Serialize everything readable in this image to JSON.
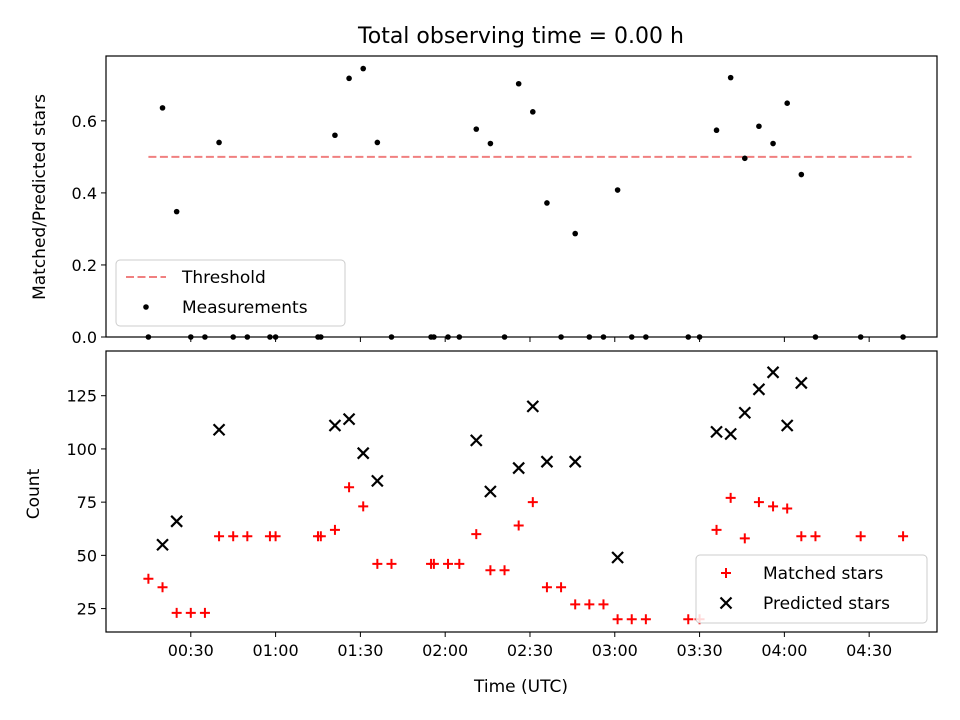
{
  "colors": {
    "threshold": "#f08080",
    "measurements": "#000000",
    "matched": "#ff0000",
    "predicted": "#000000"
  },
  "chart_data": [
    {
      "type": "scatter",
      "title": "Total observing time = 0.00 h",
      "xlabel": "",
      "ylabel": "Matched/Predicted stars",
      "xlim": [
        "00:00",
        "04:54"
      ],
      "ylim": [
        0,
        0.78
      ],
      "yticks": [
        0.0,
        0.2,
        0.4,
        0.6
      ],
      "yticklabels": [
        "0.0",
        "0.2",
        "0.4",
        "0.6"
      ],
      "grid": false,
      "legend": "lower-left",
      "threshold": {
        "name": "Threshold",
        "style": "dashed",
        "y": 0.5,
        "x": [
          "00:15",
          "04:45"
        ]
      },
      "series": [
        {
          "name": "Measurements",
          "marker": "dot",
          "points": [
            [
              "00:15",
              0.0
            ],
            [
              "00:20",
              0.636
            ],
            [
              "00:25",
              0.348
            ],
            [
              "00:30",
              0.0
            ],
            [
              "00:35",
              0.0
            ],
            [
              "00:40",
              0.54
            ],
            [
              "00:45",
              0.0
            ],
            [
              "00:50",
              0.0
            ],
            [
              "00:58",
              0.0
            ],
            [
              "01:00",
              0.0
            ],
            [
              "01:15",
              0.0
            ],
            [
              "01:16",
              0.0
            ],
            [
              "01:21",
              0.56
            ],
            [
              "01:26",
              0.718
            ],
            [
              "01:31",
              0.745
            ],
            [
              "01:36",
              0.54
            ],
            [
              "01:41",
              0.0
            ],
            [
              "01:55",
              0.0
            ],
            [
              "01:56",
              0.0
            ],
            [
              "02:01",
              0.0
            ],
            [
              "02:05",
              0.0
            ],
            [
              "02:11",
              0.577
            ],
            [
              "02:16",
              0.537
            ],
            [
              "02:21",
              0.0
            ],
            [
              "02:26",
              0.703
            ],
            [
              "02:31",
              0.625
            ],
            [
              "02:36",
              0.372
            ],
            [
              "02:41",
              0.0
            ],
            [
              "02:46",
              0.287
            ],
            [
              "02:51",
              0.0
            ],
            [
              "02:56",
              0.0
            ],
            [
              "03:01",
              0.408
            ],
            [
              "03:06",
              0.0
            ],
            [
              "03:11",
              0.0
            ],
            [
              "03:26",
              0.0
            ],
            [
              "03:30",
              0.0
            ],
            [
              "03:36",
              0.574
            ],
            [
              "03:41",
              0.72
            ],
            [
              "03:46",
              0.496
            ],
            [
              "03:51",
              0.585
            ],
            [
              "03:56",
              0.537
            ],
            [
              "04:01",
              0.649
            ],
            [
              "04:06",
              0.451
            ],
            [
              "04:11",
              0.0
            ],
            [
              "04:27",
              0.0
            ],
            [
              "04:42",
              0.0
            ]
          ]
        }
      ]
    },
    {
      "type": "scatter",
      "title": "",
      "xlabel": "Time (UTC)",
      "ylabel": "Count",
      "xlim": [
        "00:00",
        "04:54"
      ],
      "ylim": [
        14,
        146
      ],
      "yticks": [
        25,
        50,
        75,
        100,
        125
      ],
      "yticklabels": [
        "25",
        "50",
        "75",
        "100",
        "125"
      ],
      "xticks": [
        "00:30",
        "01:00",
        "01:30",
        "02:00",
        "02:30",
        "03:00",
        "03:30",
        "04:00",
        "04:30"
      ],
      "grid": false,
      "legend": "lower-right",
      "series": [
        {
          "name": "Matched stars",
          "marker": "plus",
          "points": [
            [
              "00:15",
              39
            ],
            [
              "00:20",
              35
            ],
            [
              "00:25",
              23
            ],
            [
              "00:30",
              23
            ],
            [
              "00:35",
              23
            ],
            [
              "00:40",
              59
            ],
            [
              "00:45",
              59
            ],
            [
              "00:50",
              59
            ],
            [
              "00:58",
              59
            ],
            [
              "01:00",
              59
            ],
            [
              "01:15",
              59
            ],
            [
              "01:16",
              59
            ],
            [
              "01:21",
              62
            ],
            [
              "01:26",
              82
            ],
            [
              "01:31",
              73
            ],
            [
              "01:36",
              46
            ],
            [
              "01:41",
              46
            ],
            [
              "01:55",
              46
            ],
            [
              "01:56",
              46
            ],
            [
              "02:01",
              46
            ],
            [
              "02:05",
              46
            ],
            [
              "02:11",
              60
            ],
            [
              "02:16",
              43
            ],
            [
              "02:21",
              43
            ],
            [
              "02:26",
              64
            ],
            [
              "02:31",
              75
            ],
            [
              "02:36",
              35
            ],
            [
              "02:41",
              35
            ],
            [
              "02:46",
              27
            ],
            [
              "02:51",
              27
            ],
            [
              "02:56",
              27
            ],
            [
              "03:01",
              20
            ],
            [
              "03:06",
              20
            ],
            [
              "03:11",
              20
            ],
            [
              "03:26",
              20
            ],
            [
              "03:30",
              20
            ],
            [
              "03:36",
              62
            ],
            [
              "03:41",
              77
            ],
            [
              "03:46",
              58
            ],
            [
              "03:51",
              75
            ],
            [
              "03:56",
              73
            ],
            [
              "04:01",
              72
            ],
            [
              "04:06",
              59
            ],
            [
              "04:11",
              59
            ],
            [
              "04:27",
              59
            ],
            [
              "04:42",
              59
            ]
          ]
        },
        {
          "name": "Predicted stars",
          "marker": "x",
          "points": [
            [
              "00:20",
              55
            ],
            [
              "00:25",
              66
            ],
            [
              "00:40",
              109
            ],
            [
              "01:21",
              111
            ],
            [
              "01:26",
              114
            ],
            [
              "01:31",
              98
            ],
            [
              "01:36",
              85
            ],
            [
              "02:11",
              104
            ],
            [
              "02:16",
              80
            ],
            [
              "02:26",
              91
            ],
            [
              "02:31",
              120
            ],
            [
              "02:36",
              94
            ],
            [
              "02:46",
              94
            ],
            [
              "03:01",
              49
            ],
            [
              "03:36",
              108
            ],
            [
              "03:41",
              107
            ],
            [
              "03:46",
              117
            ],
            [
              "03:51",
              128
            ],
            [
              "03:56",
              136
            ],
            [
              "04:01",
              111
            ],
            [
              "04:06",
              131
            ]
          ]
        }
      ]
    }
  ]
}
